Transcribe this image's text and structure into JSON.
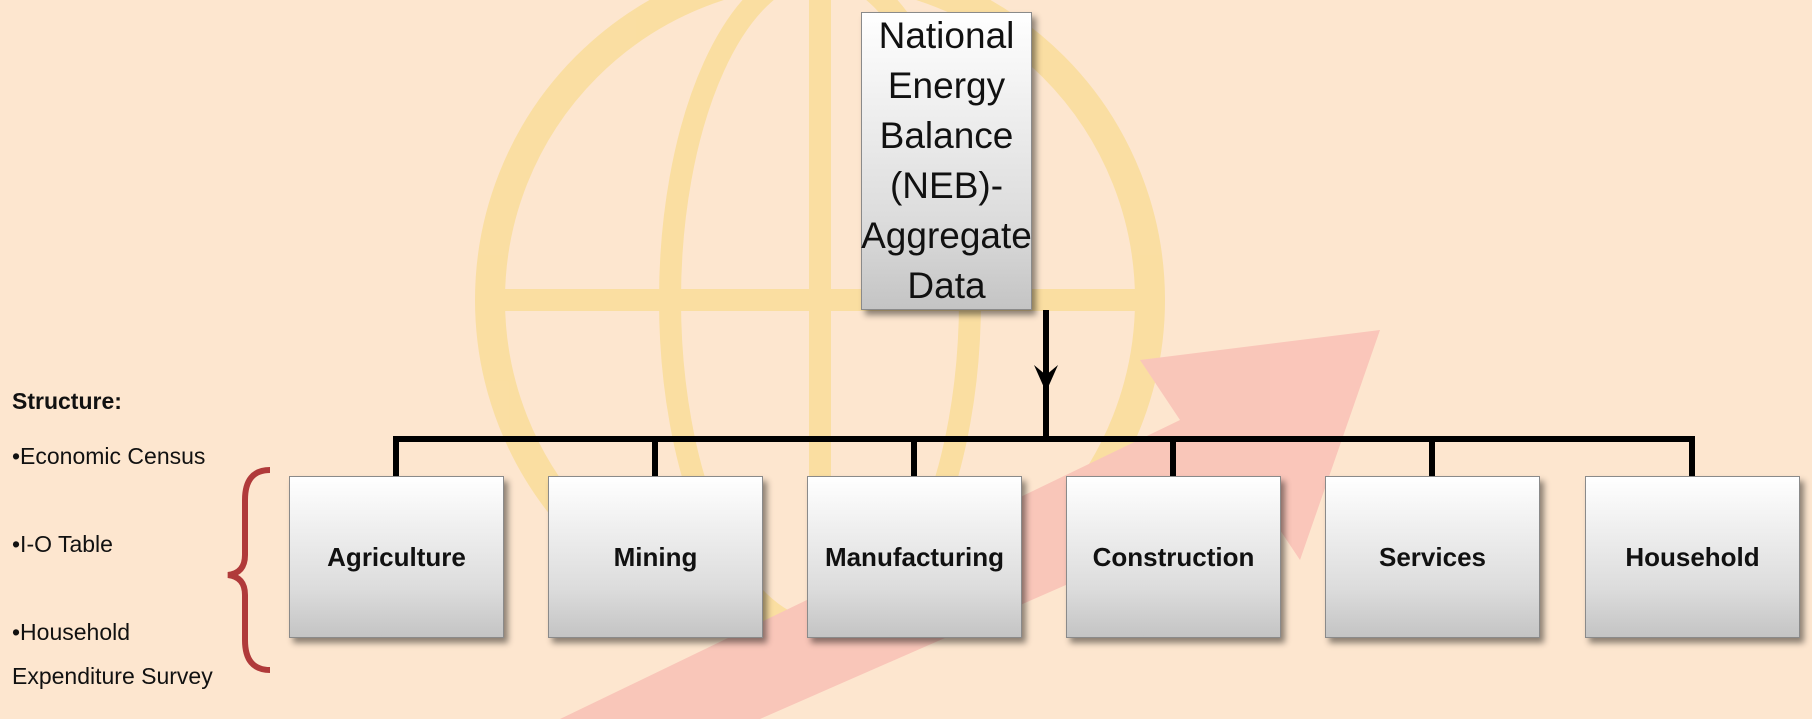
{
  "root": {
    "lines": [
      "National Energy",
      "Balance  (NEB)-",
      "Aggregate Data"
    ]
  },
  "sectors": [
    "Agriculture",
    "Mining",
    "Manufacturing",
    "Construction",
    "Services",
    "Household"
  ],
  "structure": {
    "heading": "Structure:",
    "items": [
      "•Economic Census",
      "•I-O Table",
      "•Household Expenditure Survey"
    ]
  }
}
